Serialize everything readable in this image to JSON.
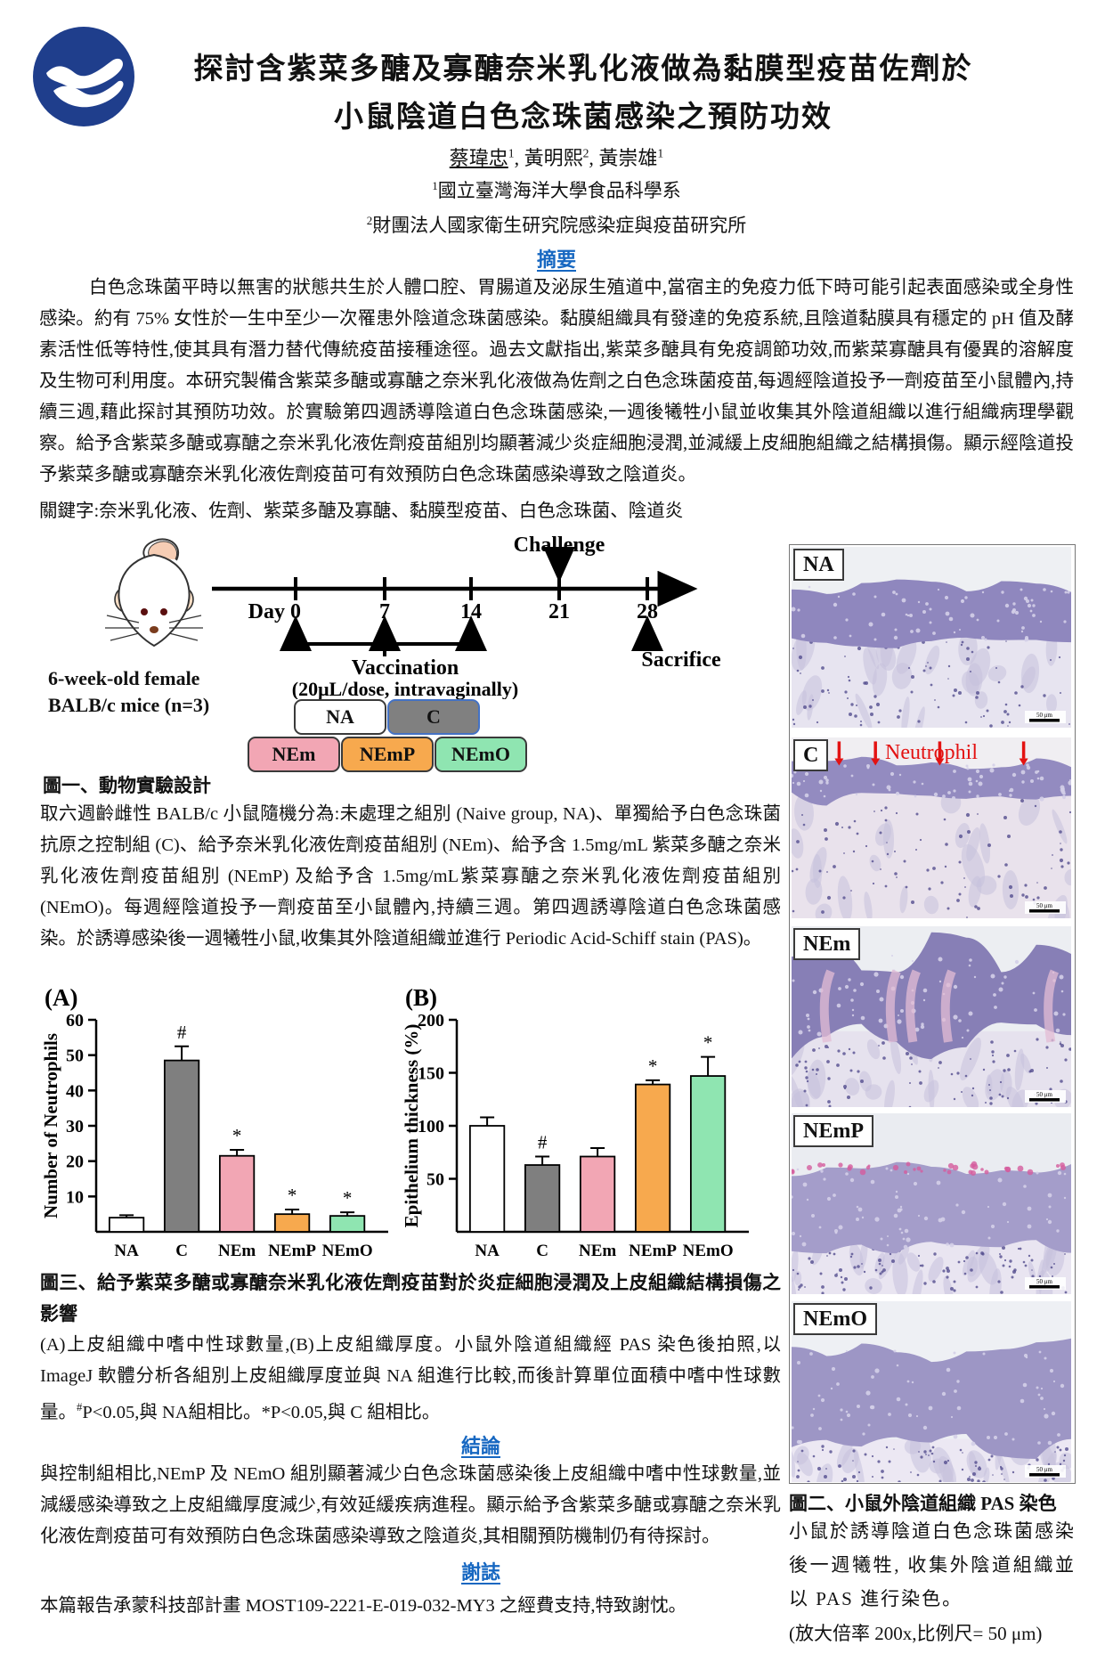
{
  "header": {
    "title_line1": "探討含紫菜多醣及寡醣奈米乳化液做為黏膜型疫苗佐劑於",
    "title_line2": "小鼠陰道白色念珠菌感染之預防功效",
    "authors": [
      {
        "pre": "",
        "name": "蔡瑋忠",
        "sup": "1"
      },
      {
        "pre": ", ",
        "name": "黃明熙",
        "sup": "2"
      },
      {
        "pre": ", ",
        "name": "黃崇雄",
        "sup": "1"
      }
    ],
    "affiliations": [
      {
        "sup": "1",
        "text": "國立臺灣海洋大學食品科學系"
      },
      {
        "sup": "2",
        "text": "財團法人國家衛生研究院感染症與疫苗研究所"
      }
    ]
  },
  "abstract": {
    "heading": "摘要",
    "text": "白色念珠菌平時以無害的狀態共生於人體口腔、胃腸道及泌尿生殖道中,當宿主的免疫力低下時可能引起表面感染或全身性感染。約有 75% 女性於一生中至少一次罹患外陰道念珠菌感染。黏膜組織具有發達的免疫系統,且陰道黏膜具有穩定的 pH 值及酵素活性低等特性,使其具有潛力替代傳統疫苗接種途徑。過去文獻指出,紫菜多醣具有免疫調節功效,而紫菜寡醣具有優異的溶解度及生物可利用度。本研究製備含紫菜多醣或寡醣之奈米乳化液做為佐劑之白色念珠菌疫苗,每週經陰道投予一劑疫苗至小鼠體內,持續三週,藉此探討其預防功效。於實驗第四週誘導陰道白色念珠菌感染,一週後犧牲小鼠並收集其外陰道組織以進行組織病理學觀察。給予含紫菜多醣或寡醣之奈米乳化液佐劑疫苗組別均顯著減少炎症細胞浸潤,並減緩上皮細胞組織之結構損傷。顯示經陰道投予紫菜多醣或寡醣奈米乳化液佐劑疫苗可有效預防白色念珠菌感染導致之陰道炎。",
    "keywords": "關鍵字:奈米乳化液、佐劑、紫菜多醣及寡醣、黏膜型疫苗、白色念珠菌、陰道炎"
  },
  "figure1": {
    "caption": "圖一、動物實驗設計",
    "mouse_label_line1": "6-week-old female",
    "mouse_label_line2": "BALB/c mice  (n=3)",
    "day_label": "Day",
    "days": [
      "0",
      "7",
      "14",
      "21",
      "28"
    ],
    "challenge": "Challenge",
    "sacrifice": "Sacrifice",
    "vaccination_line1": "Vaccination",
    "vaccination_line2": "(20μL/dose, intravaginally)",
    "groups": [
      {
        "label": "NA",
        "fill": "#ffffff",
        "border": "#3a3a3a"
      },
      {
        "label": "C",
        "fill": "#808080",
        "border": "#4472c4"
      },
      {
        "label": "NEm",
        "fill": "#f2a6b4",
        "border": "#3a3a3a"
      },
      {
        "label": "NEmP",
        "fill": "#f7a94e",
        "border": "#3a3a3a"
      },
      {
        "label": "NEmO",
        "fill": "#8fe5b1",
        "border": "#3a3a3a"
      }
    ],
    "description": "取六週齡雌性 BALB/c 小鼠隨機分為:未處理之組別 (Naive group, NA)、單獨給予白色念珠菌抗原之控制組 (C)、給予奈米乳化液佐劑疫苗組別 (NEm)、給予含 1.5mg/mL 紫菜多醣之奈米乳化液佐劑疫苗組別 (NEmP) 及給予含 1.5mg/mL紫菜寡醣之奈米乳化液佐劑疫苗組別 (NEmO)。每週經陰道投予一劑疫苗至小鼠體內,持續三週。第四週誘導陰道白色念珠菌感染。於誘導感染後一週犧牲小鼠,收集其外陰道組織並進行 Periodic Acid-Schiff stain (PAS)。"
  },
  "chart_data": [
    {
      "type": "bar",
      "panel_label": "(A)",
      "categories": [
        "NA",
        "C",
        "NEm",
        "NEmP",
        "NEmO"
      ],
      "values": [
        4,
        48.5,
        21.5,
        5,
        4.5
      ],
      "errors": [
        0.7,
        4,
        1.7,
        1.3,
        1
      ],
      "annotations": [
        "",
        "#",
        "*",
        "*",
        "*"
      ],
      "bar_colors": [
        "#ffffff",
        "#7f7f7f",
        "#f2a6b4",
        "#f7a94e",
        "#8fe5b1"
      ],
      "title": "",
      "xlabel": "",
      "ylabel": "Number of Neutrophils",
      "ylim": [
        0,
        60
      ],
      "yticks": [
        10,
        20,
        30,
        40,
        50,
        60
      ],
      "grid": false,
      "legend": "none"
    },
    {
      "type": "bar",
      "panel_label": "(B)",
      "categories": [
        "NA",
        "C",
        "NEm",
        "NEmP",
        "NEmO"
      ],
      "values": [
        100,
        63,
        71,
        139,
        147
      ],
      "errors": [
        8,
        8,
        8,
        4,
        18
      ],
      "annotations": [
        "",
        "#",
        "",
        "*",
        "*"
      ],
      "bar_colors": [
        "#ffffff",
        "#7f7f7f",
        "#f2a6b4",
        "#f7a94e",
        "#8fe5b1"
      ],
      "title": "",
      "xlabel": "",
      "ylabel": "Epithelium thickness (%)",
      "ylim": [
        0,
        200
      ],
      "yticks": [
        50,
        100,
        150,
        200
      ],
      "grid": false,
      "legend": "none"
    }
  ],
  "figure3": {
    "caption": "圖三、給予紫菜多醣或寡醣奈米乳化液佐劑疫苗對於炎症細胞浸潤及上皮組織結構損傷之影響",
    "description": "(A)上皮組織中嗜中性球數量,(B)上皮組織厚度。小鼠外陰道組織經 PAS 染色後拍照,以 ImageJ 軟體分析各組別上皮組織厚度並與 NA 組進行比較,而後計算單位面積中嗜中性球數量。",
    "sig_hash": "#",
    "sig_hash_text": "P<0.05,與 NA組相比。",
    "sig_star": "*P<0.05,與 C 組相比。"
  },
  "conclusion": {
    "heading": "結論",
    "text": "與控制組相比,NEmP 及 NEmO 組別顯著減少白色念珠菌感染後上皮組織中嗜中性球數量,並減緩感染導致之上皮組織厚度減少,有效延緩疾病進程。顯示給予含紫菜多醣或寡醣之奈米乳化液佐劑疫苗可有效預防白色念珠菌感染導致之陰道炎,其相關預防機制仍有待探討。"
  },
  "acknowledgement": {
    "heading": "謝誌",
    "text": "本篇報告承蒙科技部計畫 MOST109-2221-E-019-032-MY3 之經費支持,特致謝忱。"
  },
  "figure2": {
    "panels": [
      {
        "label": "NA"
      },
      {
        "label": "C"
      },
      {
        "label": "NEm"
      },
      {
        "label": "NEmP"
      },
      {
        "label": "NEmO"
      }
    ],
    "neutrophil_label": "Neutrophil",
    "scale_text": "50 μm",
    "caption": "圖二、小鼠外陰道組織 PAS 染色",
    "description": "小鼠於誘導陰道白色念珠菌感染後一週犧牲, 收集外陰道組織並以 PAS 進行染色。",
    "magnification": "(放大倍率 200x,比例尺= 50 μm)"
  }
}
